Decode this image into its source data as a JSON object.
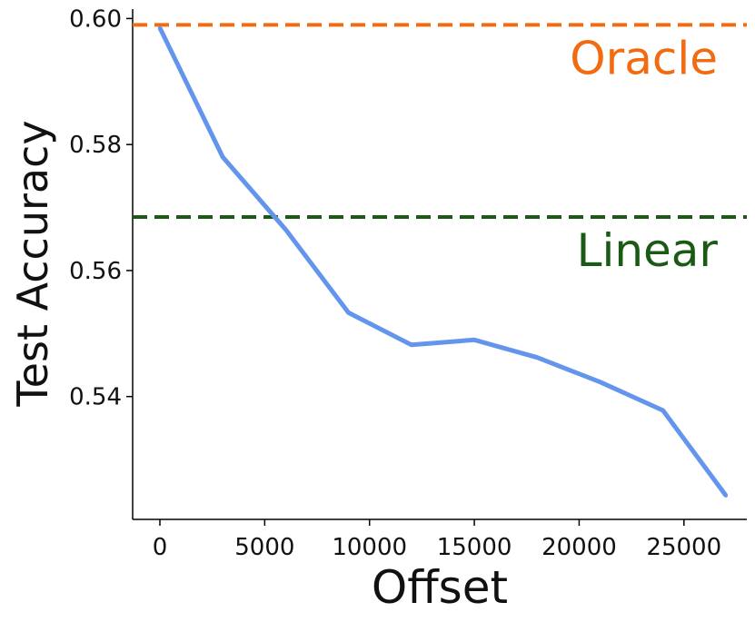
{
  "chart_data": {
    "type": "line",
    "title": "",
    "xlabel": "Offset",
    "ylabel": "Test Accuracy",
    "xlim": [
      -1300,
      28000
    ],
    "ylim": [
      0.5205,
      0.6015
    ],
    "x_ticks": [
      0,
      5000,
      10000,
      15000,
      20000,
      25000
    ],
    "y_ticks": [
      0.54,
      0.56,
      0.58,
      0.6
    ],
    "y_tick_labels": [
      "0.54",
      "0.56",
      "0.58",
      "0.60"
    ],
    "grid": false,
    "series": [
      {
        "color": "#6495ED",
        "x": [
          0,
          3000,
          6000,
          9000,
          12000,
          15000,
          18000,
          21000,
          24000,
          27000
        ],
        "y": [
          0.5985,
          0.578,
          0.5665,
          0.5533,
          0.5482,
          0.549,
          0.5462,
          0.5423,
          0.5378,
          0.5243
        ]
      }
    ],
    "reference_lines": [
      {
        "label": "Oracle",
        "y": 0.599,
        "color": "#F26B10"
      },
      {
        "label": "Linear",
        "y": 0.5685,
        "color": "#1B5A14"
      }
    ]
  }
}
